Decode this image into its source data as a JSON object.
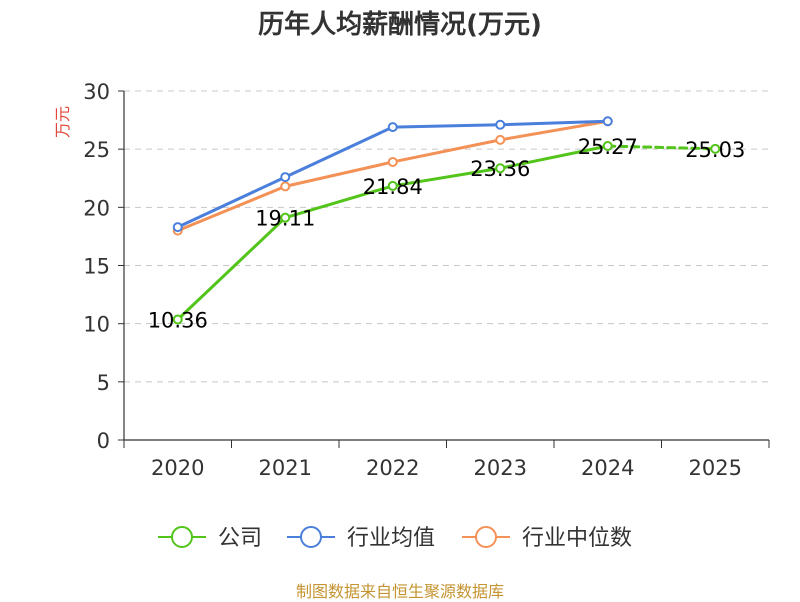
{
  "chart_data": {
    "type": "line",
    "title": "历年人均薪酬情况(万元)",
    "ylabel": "万元",
    "xlabel": "",
    "categories": [
      "2020",
      "2021",
      "2022",
      "2023",
      "2024",
      "2025"
    ],
    "ylim": [
      0,
      30
    ],
    "yticks": [
      0,
      5,
      10,
      15,
      20,
      25,
      30
    ],
    "grid": true,
    "legend_position": "bottom",
    "series": [
      {
        "name": "公司",
        "color": "#52c41a",
        "values": [
          10.36,
          19.11,
          21.84,
          23.36,
          25.27,
          25.03
        ],
        "labels": [
          "10.36",
          "19.11",
          "21.84",
          "23.36",
          "25.27",
          "25.03"
        ],
        "dashed_last_segment": true
      },
      {
        "name": "行业均值",
        "color": "#4a7fdc",
        "values": [
          18.3,
          22.6,
          26.9,
          27.1,
          27.4,
          null
        ]
      },
      {
        "name": "行业中位数",
        "color": "#f39156",
        "values": [
          18.0,
          21.8,
          23.9,
          25.8,
          27.4,
          null
        ]
      }
    ]
  },
  "source_note": "制图数据来自恒生聚源数据库"
}
